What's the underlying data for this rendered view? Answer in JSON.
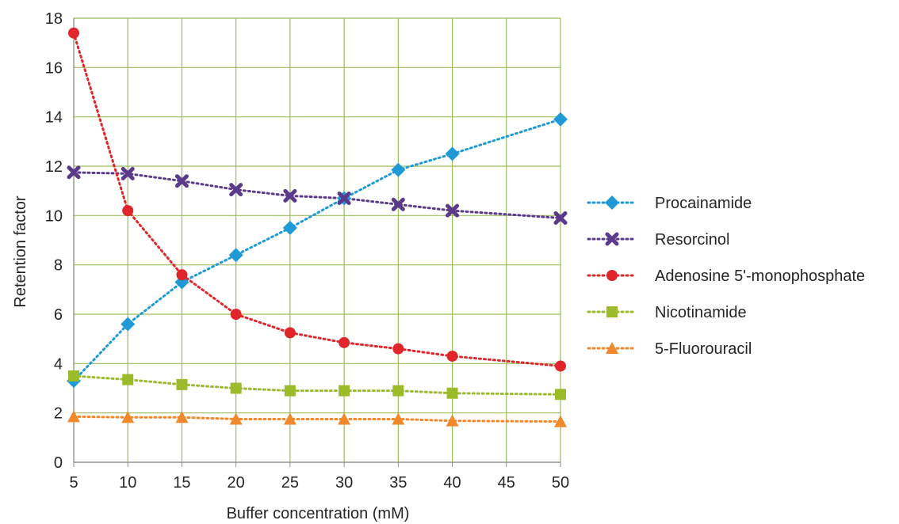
{
  "chart_data": {
    "type": "line",
    "title": "",
    "xlabel": "Buffer concentration (mM)",
    "ylabel": "Retention factor",
    "xlim": [
      5,
      50
    ],
    "ylim": [
      0,
      18
    ],
    "x_ticks": [
      5,
      10,
      15,
      20,
      25,
      30,
      35,
      40,
      45,
      50
    ],
    "y_ticks": [
      0,
      2,
      4,
      6,
      8,
      10,
      12,
      14,
      16,
      18
    ],
    "grid": true,
    "grid_color": "#9bbb59",
    "legend_position": "right",
    "line_style": "dotted",
    "x": [
      5,
      10,
      15,
      20,
      25,
      30,
      35,
      40,
      50
    ],
    "series": [
      {
        "name": "Procainamide",
        "color": "#1f9ad6",
        "marker": "diamond",
        "values": [
          3.3,
          5.6,
          7.3,
          8.4,
          9.5,
          10.7,
          11.85,
          12.5,
          13.9
        ]
      },
      {
        "name": "Resorcinol",
        "color": "#5b3a8c",
        "marker": "x",
        "values": [
          11.75,
          11.7,
          11.4,
          11.05,
          10.8,
          10.7,
          10.45,
          10.2,
          9.9
        ]
      },
      {
        "name": "Adenosine 5'-monophosphate",
        "color": "#e0262b",
        "marker": "circle",
        "values": [
          17.4,
          10.2,
          7.6,
          6.0,
          5.25,
          4.85,
          4.6,
          4.3,
          3.9
        ]
      },
      {
        "name": "Nicotinamide",
        "color": "#9bbb2a",
        "marker": "square",
        "values": [
          3.5,
          3.35,
          3.15,
          3.0,
          2.9,
          2.9,
          2.9,
          2.8,
          2.75
        ]
      },
      {
        "name": "5-Fluorouracil",
        "color": "#f0892b",
        "marker": "triangle",
        "values": [
          1.85,
          1.82,
          1.82,
          1.75,
          1.75,
          1.75,
          1.75,
          1.68,
          1.65
        ]
      }
    ]
  }
}
